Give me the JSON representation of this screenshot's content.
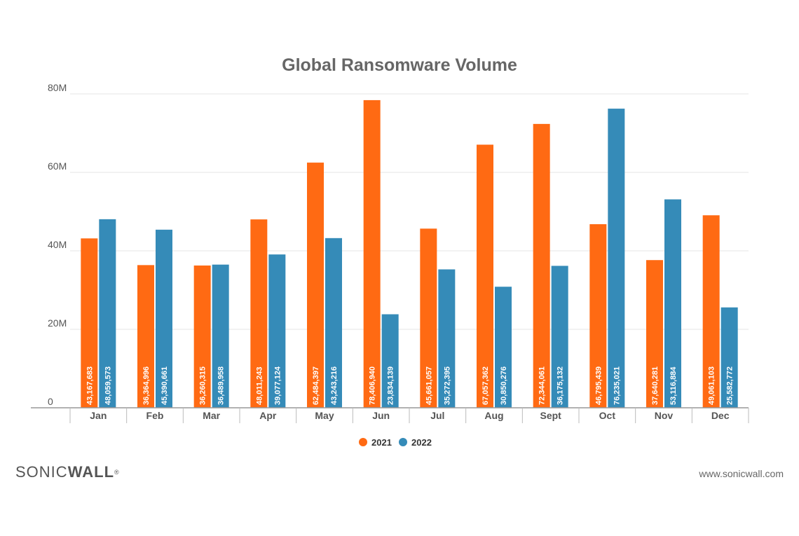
{
  "chart_data": {
    "type": "bar",
    "title": "Global Ransomware Volume",
    "categories": [
      "Jan",
      "Feb",
      "Mar",
      "Apr",
      "May",
      "Jun",
      "Jul",
      "Aug",
      "Sept",
      "Oct",
      "Nov",
      "Dec"
    ],
    "series": [
      {
        "name": "2021",
        "color": "#ff6a13",
        "values": [
          43167683,
          36364996,
          36260315,
          48011243,
          62484397,
          78406940,
          45661057,
          67057362,
          72344061,
          46795439,
          37640281,
          49061103
        ],
        "labels": [
          "43,167,683",
          "36,364,996",
          "36,260,315",
          "48,011,243",
          "62,484,397",
          "78,406,940",
          "45,661,057",
          "67,057,362",
          "72,344,061",
          "46,795,439",
          "37,640,281",
          "49,061,103"
        ]
      },
      {
        "name": "2022",
        "color": "#358bb8",
        "values": [
          48059573,
          45390661,
          36489958,
          39077124,
          43243216,
          23834139,
          35272395,
          30850276,
          36175132,
          76235021,
          53116884,
          25582772
        ],
        "labels": [
          "48,059,573",
          "45,390,661",
          "36,489,958",
          "39,077,124",
          "43,243,216",
          "23,834,139",
          "35,272,395",
          "30,850,276",
          "36,175,132",
          "76,235,021",
          "53,116,884",
          "25,582,772"
        ]
      }
    ],
    "yticks": [
      {
        "value": 0,
        "label": "0"
      },
      {
        "value": 20000000,
        "label": "20M"
      },
      {
        "value": 40000000,
        "label": "40M"
      },
      {
        "value": 60000000,
        "label": "60M"
      },
      {
        "value": 80000000,
        "label": "80M"
      }
    ],
    "ylim": [
      0,
      80000000
    ],
    "grid": true,
    "legend_position": "bottom"
  },
  "branding": {
    "logo_part1": "SONIC",
    "logo_part2": "WALL",
    "trademark": "®",
    "website": "www.sonicwall.com"
  }
}
